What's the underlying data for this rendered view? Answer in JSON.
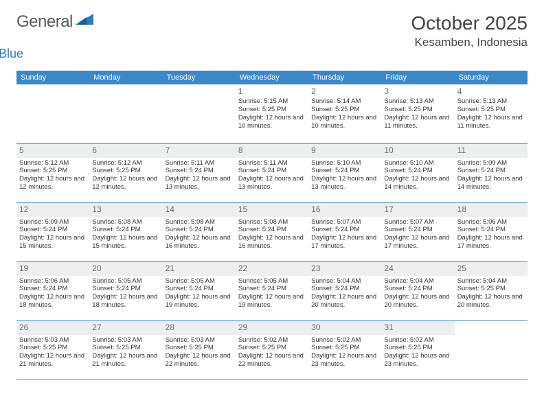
{
  "brand": {
    "word1": "General",
    "word2": "Blue"
  },
  "title": {
    "month": "October 2025",
    "location": "Kesamben, Indonesia"
  },
  "colors": {
    "header_bg": "#3b87c8",
    "header_text": "#ffffff",
    "grid_line": "#3b87c8",
    "shade_bg": "#eceeef",
    "page_bg": "#ffffff",
    "text": "#333333",
    "logo_gray": "#5a5a5a",
    "logo_blue": "#2f7ac0"
  },
  "typography": {
    "month_fontsize": 28,
    "location_fontsize": 17,
    "header_fontsize": 11,
    "daynum_fontsize": 12,
    "body_fontsize": 9.5
  },
  "day_headers": [
    "Sunday",
    "Monday",
    "Tuesday",
    "Wednesday",
    "Thursday",
    "Friday",
    "Saturday"
  ],
  "weeks": [
    {
      "shaded": false,
      "days": [
        {
          "num": "",
          "sunrise": "",
          "sunset": "",
          "daylight": ""
        },
        {
          "num": "",
          "sunrise": "",
          "sunset": "",
          "daylight": ""
        },
        {
          "num": "",
          "sunrise": "",
          "sunset": "",
          "daylight": ""
        },
        {
          "num": "1",
          "sunrise": "Sunrise: 5:15 AM",
          "sunset": "Sunset: 5:25 PM",
          "daylight": "Daylight: 12 hours and 10 minutes."
        },
        {
          "num": "2",
          "sunrise": "Sunrise: 5:14 AM",
          "sunset": "Sunset: 5:25 PM",
          "daylight": "Daylight: 12 hours and 10 minutes."
        },
        {
          "num": "3",
          "sunrise": "Sunrise: 5:13 AM",
          "sunset": "Sunset: 5:25 PM",
          "daylight": "Daylight: 12 hours and 11 minutes."
        },
        {
          "num": "4",
          "sunrise": "Sunrise: 5:13 AM",
          "sunset": "Sunset: 5:25 PM",
          "daylight": "Daylight: 12 hours and 11 minutes."
        }
      ]
    },
    {
      "shaded": true,
      "days": [
        {
          "num": "5",
          "sunrise": "Sunrise: 5:12 AM",
          "sunset": "Sunset: 5:25 PM",
          "daylight": "Daylight: 12 hours and 12 minutes."
        },
        {
          "num": "6",
          "sunrise": "Sunrise: 5:12 AM",
          "sunset": "Sunset: 5:25 PM",
          "daylight": "Daylight: 12 hours and 12 minutes."
        },
        {
          "num": "7",
          "sunrise": "Sunrise: 5:11 AM",
          "sunset": "Sunset: 5:24 PM",
          "daylight": "Daylight: 12 hours and 13 minutes."
        },
        {
          "num": "8",
          "sunrise": "Sunrise: 5:11 AM",
          "sunset": "Sunset: 5:24 PM",
          "daylight": "Daylight: 12 hours and 13 minutes."
        },
        {
          "num": "9",
          "sunrise": "Sunrise: 5:10 AM",
          "sunset": "Sunset: 5:24 PM",
          "daylight": "Daylight: 12 hours and 13 minutes."
        },
        {
          "num": "10",
          "sunrise": "Sunrise: 5:10 AM",
          "sunset": "Sunset: 5:24 PM",
          "daylight": "Daylight: 12 hours and 14 minutes."
        },
        {
          "num": "11",
          "sunrise": "Sunrise: 5:09 AM",
          "sunset": "Sunset: 5:24 PM",
          "daylight": "Daylight: 12 hours and 14 minutes."
        }
      ]
    },
    {
      "shaded": true,
      "days": [
        {
          "num": "12",
          "sunrise": "Sunrise: 5:09 AM",
          "sunset": "Sunset: 5:24 PM",
          "daylight": "Daylight: 12 hours and 15 minutes."
        },
        {
          "num": "13",
          "sunrise": "Sunrise: 5:08 AM",
          "sunset": "Sunset: 5:24 PM",
          "daylight": "Daylight: 12 hours and 15 minutes."
        },
        {
          "num": "14",
          "sunrise": "Sunrise: 5:08 AM",
          "sunset": "Sunset: 5:24 PM",
          "daylight": "Daylight: 12 hours and 16 minutes."
        },
        {
          "num": "15",
          "sunrise": "Sunrise: 5:08 AM",
          "sunset": "Sunset: 5:24 PM",
          "daylight": "Daylight: 12 hours and 16 minutes."
        },
        {
          "num": "16",
          "sunrise": "Sunrise: 5:07 AM",
          "sunset": "Sunset: 5:24 PM",
          "daylight": "Daylight: 12 hours and 17 minutes."
        },
        {
          "num": "17",
          "sunrise": "Sunrise: 5:07 AM",
          "sunset": "Sunset: 5:24 PM",
          "daylight": "Daylight: 12 hours and 17 minutes."
        },
        {
          "num": "18",
          "sunrise": "Sunrise: 5:06 AM",
          "sunset": "Sunset: 5:24 PM",
          "daylight": "Daylight: 12 hours and 17 minutes."
        }
      ]
    },
    {
      "shaded": true,
      "days": [
        {
          "num": "19",
          "sunrise": "Sunrise: 5:06 AM",
          "sunset": "Sunset: 5:24 PM",
          "daylight": "Daylight: 12 hours and 18 minutes."
        },
        {
          "num": "20",
          "sunrise": "Sunrise: 5:05 AM",
          "sunset": "Sunset: 5:24 PM",
          "daylight": "Daylight: 12 hours and 18 minutes."
        },
        {
          "num": "21",
          "sunrise": "Sunrise: 5:05 AM",
          "sunset": "Sunset: 5:24 PM",
          "daylight": "Daylight: 12 hours and 19 minutes."
        },
        {
          "num": "22",
          "sunrise": "Sunrise: 5:05 AM",
          "sunset": "Sunset: 5:24 PM",
          "daylight": "Daylight: 12 hours and 19 minutes."
        },
        {
          "num": "23",
          "sunrise": "Sunrise: 5:04 AM",
          "sunset": "Sunset: 5:24 PM",
          "daylight": "Daylight: 12 hours and 20 minutes."
        },
        {
          "num": "24",
          "sunrise": "Sunrise: 5:04 AM",
          "sunset": "Sunset: 5:24 PM",
          "daylight": "Daylight: 12 hours and 20 minutes."
        },
        {
          "num": "25",
          "sunrise": "Sunrise: 5:04 AM",
          "sunset": "Sunset: 5:25 PM",
          "daylight": "Daylight: 12 hours and 20 minutes."
        }
      ]
    },
    {
      "shaded": true,
      "days": [
        {
          "num": "26",
          "sunrise": "Sunrise: 5:03 AM",
          "sunset": "Sunset: 5:25 PM",
          "daylight": "Daylight: 12 hours and 21 minutes."
        },
        {
          "num": "27",
          "sunrise": "Sunrise: 5:03 AM",
          "sunset": "Sunset: 5:25 PM",
          "daylight": "Daylight: 12 hours and 21 minutes."
        },
        {
          "num": "28",
          "sunrise": "Sunrise: 5:03 AM",
          "sunset": "Sunset: 5:25 PM",
          "daylight": "Daylight: 12 hours and 22 minutes."
        },
        {
          "num": "29",
          "sunrise": "Sunrise: 5:02 AM",
          "sunset": "Sunset: 5:25 PM",
          "daylight": "Daylight: 12 hours and 22 minutes."
        },
        {
          "num": "30",
          "sunrise": "Sunrise: 5:02 AM",
          "sunset": "Sunset: 5:25 PM",
          "daylight": "Daylight: 12 hours and 23 minutes."
        },
        {
          "num": "31",
          "sunrise": "Sunrise: 5:02 AM",
          "sunset": "Sunset: 5:25 PM",
          "daylight": "Daylight: 12 hours and 23 minutes."
        },
        {
          "num": "",
          "sunrise": "",
          "sunset": "",
          "daylight": ""
        }
      ]
    }
  ]
}
